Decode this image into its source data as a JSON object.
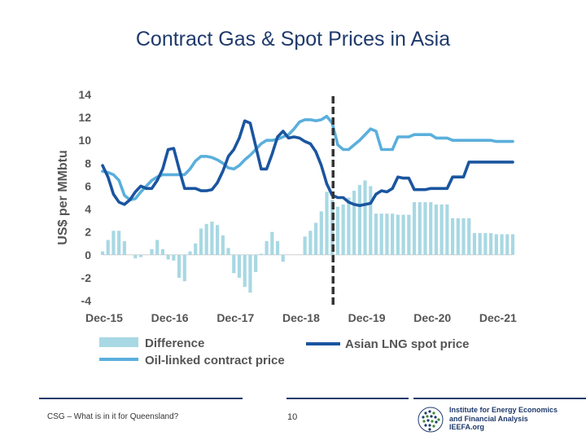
{
  "slide": {
    "title": "Contract Gas & Spot Prices in Asia",
    "footer_text": "CSG – What is in it for Queensland?",
    "page_number": "10"
  },
  "logo": {
    "line1": "Institute for Energy Economics",
    "line2": "and Financial Analysis",
    "line3": "IEEFA.org"
  },
  "colors": {
    "title": "#1f3a6b",
    "difference": "#a8d8e3",
    "spot": "#1a55a0",
    "oil": "#5aafdc",
    "divider": "#333333"
  },
  "chart_data": {
    "type": "bar+line",
    "ylabel": "US$ per MMbtu",
    "ylim": [
      -4,
      14
    ],
    "yticks": [
      14,
      12,
      10,
      8,
      6,
      4,
      2,
      0,
      -2,
      -4
    ],
    "xtick_labels": [
      "Dec-15",
      "Dec-16",
      "Dec-17",
      "Dec-18",
      "Dec-19",
      "Dec-20",
      "Dec-21"
    ],
    "x_start": "Dec-15",
    "divider_at": "Jun-19",
    "legend": {
      "difference": "Difference",
      "spot": "Asian LNG spot price",
      "oil": "Oil-linked contract price"
    },
    "difference": [
      0.3,
      1.3,
      2.1,
      2.1,
      1.2,
      0,
      -0.3,
      -0.2,
      0,
      0.5,
      1.3,
      0.5,
      -0.4,
      -0.5,
      -2.0,
      -2.3,
      0.3,
      1.0,
      2.3,
      2.7,
      2.9,
      2.6,
      1.7,
      0.6,
      -1.6,
      -2.0,
      -2.8,
      -3.3,
      -1.5,
      0.1,
      1.2,
      2.0,
      1.2,
      -0.6,
      0,
      0,
      0,
      1.6,
      2.1,
      2.8,
      3.8,
      5.5,
      4.8,
      4.2,
      4.4,
      5.0,
      5.6,
      6.1,
      6.5,
      6.0,
      3.6,
      3.6,
      3.6,
      3.6,
      3.5,
      3.5,
      3.5,
      4.6,
      4.6,
      4.6,
      4.6,
      4.4,
      4.4,
      4.4,
      3.2,
      3.2,
      3.2,
      3.2,
      1.9,
      1.9,
      1.9,
      1.9,
      1.8,
      1.8,
      1.8,
      1.8
    ],
    "oil_linked_contract_price": [
      7.3,
      7.2,
      7.0,
      6.5,
      5.2,
      4.8,
      4.9,
      5.5,
      6.0,
      6.5,
      6.8,
      7.0,
      7.0,
      7.0,
      7.0,
      7.0,
      7.5,
      8.2,
      8.6,
      8.6,
      8.5,
      8.3,
      8.0,
      7.6,
      7.5,
      7.8,
      8.3,
      8.7,
      9.2,
      9.7,
      10.0,
      10.0,
      10.1,
      10.3,
      10.5,
      11.0,
      11.6,
      11.8,
      11.8,
      11.7,
      11.8,
      12.1,
      11.5,
      9.6,
      9.2,
      9.2,
      9.6,
      10.0,
      10.5,
      11.0,
      10.8,
      9.2,
      9.2,
      9.2,
      10.3,
      10.3,
      10.3,
      10.5,
      10.5,
      10.5,
      10.5,
      10.2,
      10.2,
      10.2,
      10.0,
      10.0,
      10.0,
      10.0,
      10.0,
      10.0,
      10.0,
      10.0,
      9.9,
      9.9,
      9.9,
      9.9
    ],
    "asian_lng_spot_price": [
      7.8,
      6.8,
      5.3,
      4.6,
      4.4,
      4.8,
      5.5,
      6.0,
      5.8,
      5.8,
      6.5,
      7.5,
      9.2,
      9.3,
      7.5,
      5.8,
      5.8,
      5.8,
      5.6,
      5.6,
      5.7,
      6.3,
      7.3,
      8.6,
      9.2,
      10.2,
      11.7,
      11.5,
      9.5,
      7.5,
      7.5,
      8.8,
      10.3,
      10.8,
      10.2,
      10.3,
      10.2,
      9.9,
      9.7,
      9.0,
      7.8,
      6.2,
      5.2,
      5.0,
      5.0,
      4.6,
      4.4,
      4.3,
      4.4,
      4.5,
      5.3,
      5.6,
      5.5,
      5.8,
      6.8,
      6.7,
      6.7,
      5.7,
      5.7,
      5.7,
      5.8,
      5.8,
      5.8,
      5.8,
      6.8,
      6.8,
      6.8,
      8.1,
      8.1,
      8.1,
      8.1,
      8.1,
      8.1,
      8.1,
      8.1,
      8.1
    ]
  }
}
